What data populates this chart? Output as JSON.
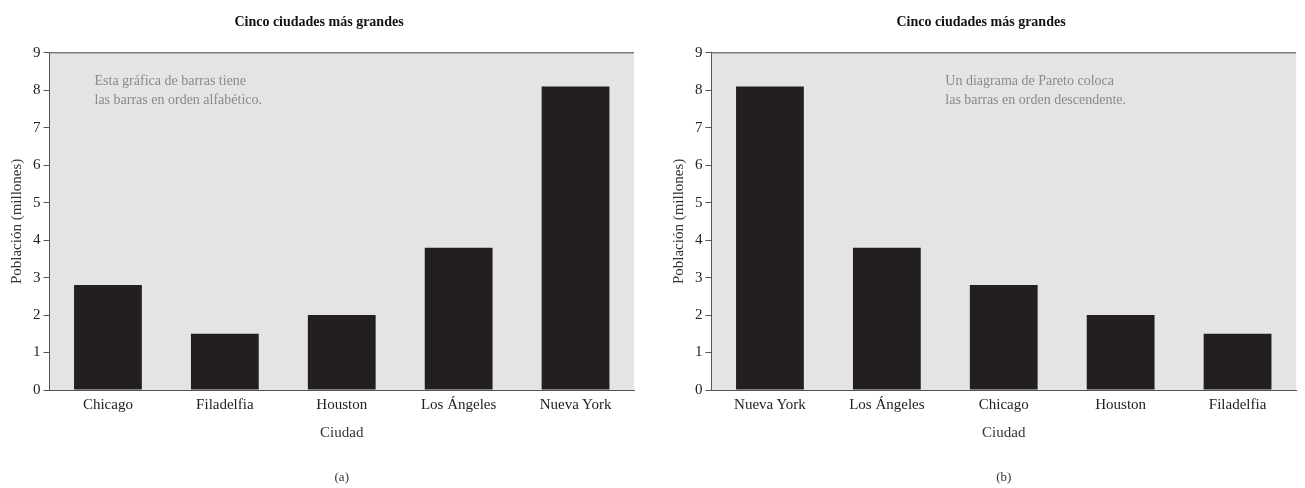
{
  "chart_data": [
    {
      "type": "bar",
      "title": "Cinco ciudades más grandes",
      "xlabel": "Ciudad",
      "ylabel": "Población (millones)",
      "categories": [
        "Chicago",
        "Filadelfia",
        "Houston",
        "Los Ángeles",
        "Nueva York"
      ],
      "values": [
        2.8,
        1.5,
        2.0,
        3.8,
        8.1
      ],
      "color": "#231f20",
      "ylim": [
        0,
        9
      ],
      "yticks": [
        0,
        1,
        2,
        3,
        4,
        5,
        6,
        7,
        8,
        9
      ],
      "grid": false,
      "legend": false,
      "annotations": [
        "Esta gráfica de barras tiene\nlas barras en orden alfabético.",
        "(a)"
      ]
    },
    {
      "type": "bar",
      "title": "Cinco ciudades más grandes",
      "xlabel": "Ciudad",
      "ylabel": "Población (millones)",
      "categories": [
        "Nueva York",
        "Los Ángeles",
        "Chicago",
        "Houston",
        "Filadelfia"
      ],
      "values": [
        8.1,
        3.8,
        2.8,
        2.0,
        1.5
      ],
      "color": "#231f20",
      "ylim": [
        0,
        9
      ],
      "yticks": [
        0,
        1,
        2,
        3,
        4,
        5,
        6,
        7,
        8,
        9
      ],
      "grid": false,
      "legend": false,
      "annotations": [
        "Un diagrama de Pareto coloca\nlas barras en orden descendente.",
        "(b)"
      ]
    }
  ]
}
